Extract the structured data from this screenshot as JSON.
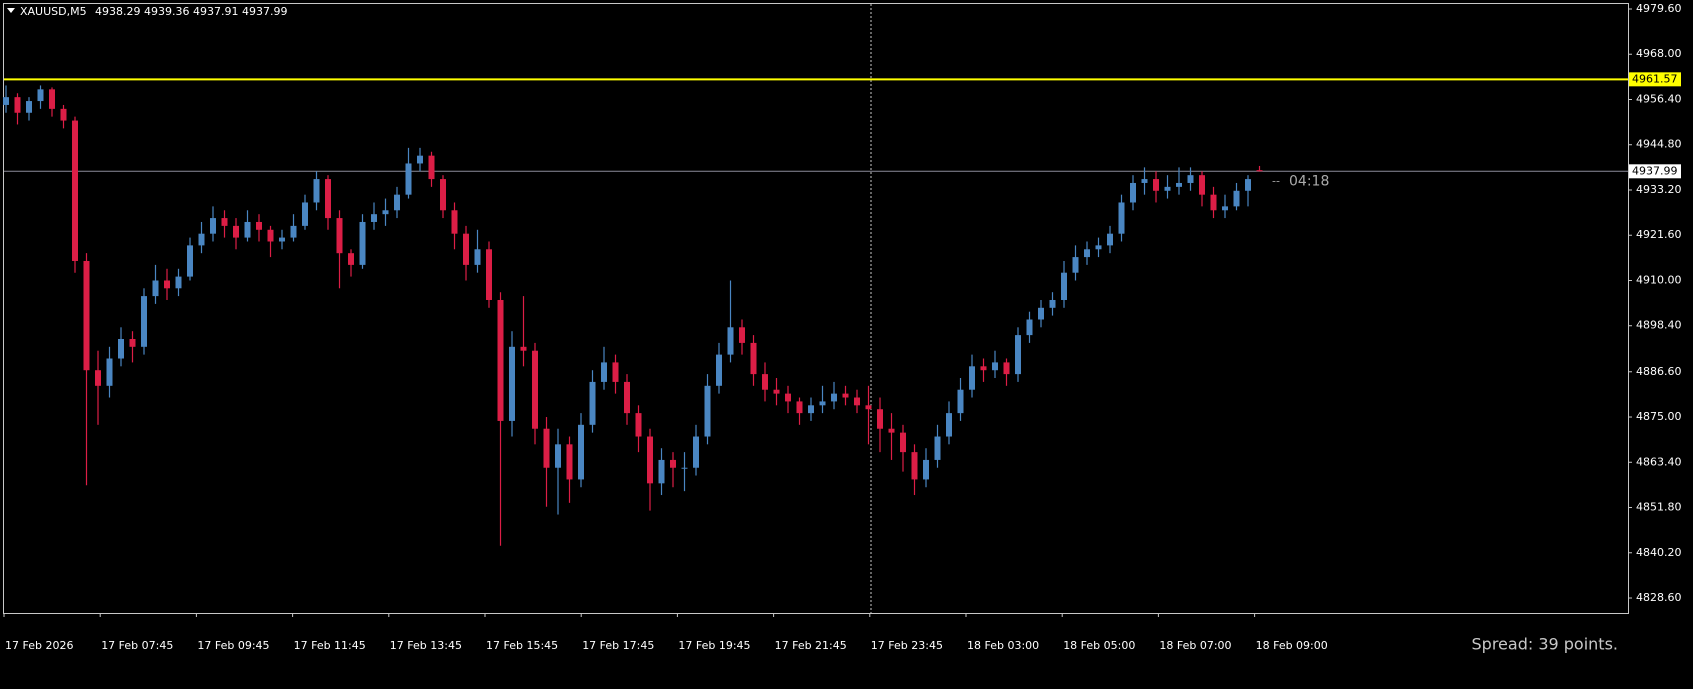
{
  "chart_data": {
    "type": "candlestick",
    "symbol": "XAUUSD,M5",
    "ohlc_text": "4938.29 4939.36 4937.91 4937.99",
    "up_color": "#4a86c2",
    "down_color": "#dc1e46",
    "ylim": [
      4824.76,
      4980.88
    ],
    "yticks": [
      {
        "value": 4979.6,
        "label": "4979.60"
      },
      {
        "value": 4968.0,
        "label": "4968.00"
      },
      {
        "value": 4956.4,
        "label": "4956.40"
      },
      {
        "value": 4944.8,
        "label": "4944.80"
      },
      {
        "value": 4933.2,
        "label": "4933.20"
      },
      {
        "value": 4921.6,
        "label": "4921.60"
      },
      {
        "value": 4910.0,
        "label": "4910.00"
      },
      {
        "value": 4898.4,
        "label": "4898.40"
      },
      {
        "value": 4886.6,
        "label": "4886.60"
      },
      {
        "value": 4875.0,
        "label": "4875.00"
      },
      {
        "value": 4863.4,
        "label": "4863.40"
      },
      {
        "value": 4851.8,
        "label": "4851.80"
      },
      {
        "value": 4840.2,
        "label": "4840.20"
      },
      {
        "value": 4828.6,
        "label": "4828.60"
      }
    ],
    "time_labels": [
      "17 Feb 2026",
      "17 Feb 07:45",
      "17 Feb 09:45",
      "17 Feb 11:45",
      "17 Feb 13:45",
      "17 Feb 15:45",
      "17 Feb 17:45",
      "17 Feb 19:45",
      "17 Feb 21:45",
      "17 Feb 23:45",
      "18 Feb 03:00",
      "18 Feb 05:00",
      "18 Feb 07:00",
      "18 Feb 09:00"
    ],
    "alert_line": {
      "value": 4961.57,
      "label": "4961.57",
      "color": "#ffff00"
    },
    "price_line": {
      "value": 4937.99,
      "label": "4937.99",
      "color": "#8c8c9a"
    },
    "countdown": "04:18",
    "spread": "Spread: 39 points.",
    "candles": [
      [
        4955,
        4960,
        4953,
        4957
      ],
      [
        4957,
        4958,
        4950,
        4953
      ],
      [
        4953,
        4957,
        4951,
        4956
      ],
      [
        4956,
        4960,
        4954,
        4959
      ],
      [
        4959,
        4959.5,
        4952,
        4954
      ],
      [
        4954,
        4955,
        4949,
        4951
      ],
      [
        4951,
        4952,
        4912,
        4915
      ],
      [
        4915,
        4917,
        4857.5,
        4887
      ],
      [
        4887,
        4892,
        4873,
        4883
      ],
      [
        4883,
        4893,
        4880,
        4890
      ],
      [
        4890,
        4898,
        4888,
        4895
      ],
      [
        4895,
        4897,
        4889,
        4893
      ],
      [
        4893,
        4908,
        4891,
        4906
      ],
      [
        4906,
        4914,
        4904,
        4910
      ],
      [
        4910,
        4913,
        4905,
        4908
      ],
      [
        4908,
        4913,
        4906,
        4911
      ],
      [
        4911,
        4921,
        4910,
        4919
      ],
      [
        4919,
        4925,
        4917,
        4922
      ],
      [
        4922,
        4929,
        4920,
        4926
      ],
      [
        4926,
        4928,
        4921,
        4924
      ],
      [
        4924,
        4926,
        4918,
        4921
      ],
      [
        4921,
        4928,
        4920,
        4925
      ],
      [
        4925,
        4927,
        4920,
        4923
      ],
      [
        4923,
        4924,
        4916,
        4920
      ],
      [
        4920,
        4923,
        4918,
        4921
      ],
      [
        4921,
        4927,
        4920,
        4924
      ],
      [
        4924,
        4932,
        4923,
        4930
      ],
      [
        4930,
        4938,
        4928,
        4936
      ],
      [
        4936,
        4937,
        4923,
        4926
      ],
      [
        4926,
        4928,
        4908,
        4917
      ],
      [
        4917,
        4918,
        4911,
        4914
      ],
      [
        4914,
        4927,
        4913,
        4925
      ],
      [
        4925,
        4930,
        4923,
        4927
      ],
      [
        4927,
        4931,
        4924,
        4928
      ],
      [
        4928,
        4934,
        4926,
        4932
      ],
      [
        4932,
        4944,
        4931,
        4940
      ],
      [
        4940,
        4944,
        4938,
        4942
      ],
      [
        4942,
        4943,
        4934,
        4936
      ],
      [
        4936,
        4937,
        4926,
        4928
      ],
      [
        4928,
        4930,
        4918,
        4922
      ],
      [
        4922,
        4924,
        4910,
        4914
      ],
      [
        4914,
        4923,
        4912,
        4918
      ],
      [
        4918,
        4920,
        4903,
        4905
      ],
      [
        4905,
        4907,
        4842,
        4874
      ],
      [
        4874,
        4897,
        4870,
        4893
      ],
      [
        4893,
        4906,
        4888,
        4892
      ],
      [
        4892,
        4894,
        4868,
        4872
      ],
      [
        4872,
        4875,
        4852,
        4862
      ],
      [
        4862,
        4872,
        4850,
        4868
      ],
      [
        4868,
        4870,
        4853,
        4859
      ],
      [
        4859,
        4876,
        4857,
        4873
      ],
      [
        4873,
        4887,
        4871,
        4884
      ],
      [
        4884,
        4893,
        4882,
        4889
      ],
      [
        4889,
        4891,
        4881,
        4884
      ],
      [
        4884,
        4886,
        4873,
        4876
      ],
      [
        4876,
        4878,
        4866,
        4870
      ],
      [
        4870,
        4872,
        4851,
        4858
      ],
      [
        4858,
        4867,
        4855,
        4864
      ],
      [
        4864,
        4866,
        4857,
        4862
      ],
      [
        4862,
        4866,
        4856,
        4862
      ],
      [
        4862,
        4873,
        4860,
        4870
      ],
      [
        4870,
        4886,
        4868,
        4883
      ],
      [
        4883,
        4894,
        4881,
        4891
      ],
      [
        4891,
        4910,
        4889,
        4898
      ],
      [
        4898,
        4900,
        4891,
        4894
      ],
      [
        4894,
        4896,
        4883,
        4886
      ],
      [
        4886,
        4889,
        4879,
        4882
      ],
      [
        4882,
        4885,
        4878,
        4881
      ],
      [
        4881,
        4883,
        4876,
        4879
      ],
      [
        4879,
        4880,
        4873,
        4876
      ],
      [
        4876,
        4880,
        4874,
        4878
      ],
      [
        4878,
        4883,
        4876,
        4879
      ],
      [
        4879,
        4884,
        4877,
        4881
      ],
      [
        4881,
        4883,
        4878,
        4880
      ],
      [
        4880,
        4882,
        4876,
        4878
      ],
      [
        4878,
        4883,
        4868,
        4877
      ],
      [
        4877,
        4880,
        4866,
        4872
      ],
      [
        4872,
        4876,
        4864,
        4871
      ],
      [
        4871,
        4873,
        4861,
        4866
      ],
      [
        4866,
        4868,
        4855,
        4859
      ],
      [
        4859,
        4867,
        4857,
        4864
      ],
      [
        4864,
        4873,
        4862,
        4870
      ],
      [
        4870,
        4879,
        4868,
        4876
      ],
      [
        4876,
        4885,
        4874,
        4882
      ],
      [
        4882,
        4891,
        4880,
        4888
      ],
      [
        4888,
        4890,
        4884,
        4887
      ],
      [
        4887,
        4892,
        4885,
        4889
      ],
      [
        4889,
        4890,
        4883,
        4886
      ],
      [
        4886,
        4898,
        4884,
        4896
      ],
      [
        4896,
        4902,
        4894,
        4900
      ],
      [
        4900,
        4905,
        4898,
        4903
      ],
      [
        4903,
        4907,
        4901,
        4905
      ],
      [
        4905,
        4915,
        4903,
        4912
      ],
      [
        4912,
        4919,
        4910,
        4916
      ],
      [
        4916,
        4920,
        4914,
        4918
      ],
      [
        4918,
        4921,
        4916,
        4919
      ],
      [
        4919,
        4924,
        4917,
        4922
      ],
      [
        4922,
        4932,
        4920,
        4930
      ],
      [
        4930,
        4937,
        4928,
        4935
      ],
      [
        4935,
        4939,
        4932,
        4936
      ],
      [
        4936,
        4938,
        4930,
        4933
      ],
      [
        4933,
        4937,
        4931,
        4934
      ],
      [
        4934,
        4939,
        4932,
        4935
      ],
      [
        4935,
        4939,
        4933,
        4937
      ],
      [
        4937,
        4938,
        4929,
        4932
      ],
      [
        4932,
        4934,
        4926,
        4928
      ],
      [
        4928,
        4932,
        4926,
        4929
      ],
      [
        4929,
        4935,
        4928,
        4933
      ],
      [
        4933,
        4937,
        4929,
        4936
      ],
      [
        4938.29,
        4939.36,
        4937.91,
        4937.99
      ]
    ]
  }
}
